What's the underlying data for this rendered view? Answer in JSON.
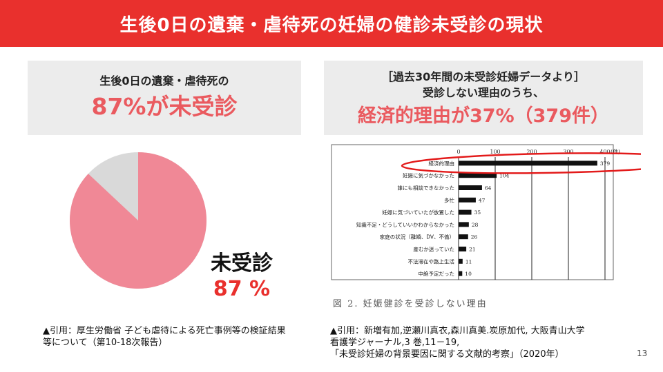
{
  "title": "生後0日の遺棄・虐待死の妊婦の健診未受診の現状",
  "left_box": {
    "line1": "生後0日の遺棄・虐待死の",
    "line2": "87%が未受診"
  },
  "right_box": {
    "line1": "［過去30年間の未受診妊婦データより］",
    "line2": "受診しない理由のうち、",
    "line3": "経済的理由が37%（379件）"
  },
  "pie": {
    "label": "未受診",
    "value_text": "87 %",
    "value": 87,
    "colors": {
      "main": "#f08896",
      "rest": "#d9d9d9"
    }
  },
  "chart_data": {
    "type": "bar",
    "orientation": "horizontal",
    "categories": [
      "経済的理由",
      "妊娠に気づかなかった",
      "誰にも相談できなかった",
      "多忙",
      "妊娠に気づいていたが放置した",
      "知識不足・どうしていいかわからなかった",
      "家庭の状況（離婚、DV、不倫）",
      "産むか迷っていた",
      "不法滞在や路上生活",
      "中絶予定だった"
    ],
    "values": [
      379,
      104,
      64,
      47,
      35,
      28,
      26,
      21,
      11,
      10
    ],
    "value_labels": [
      "379",
      "104",
      "64",
      "47",
      "35",
      "28",
      "26",
      "21",
      "11",
      "10"
    ],
    "x_ticks": [
      "0",
      "100",
      "200",
      "300",
      "400"
    ],
    "x_unit": "(件)",
    "xlim": [
      0,
      400
    ],
    "grid": true,
    "caption": "図 2.  妊娠健診を受診しない理由",
    "highlight_color": "#e31b1b"
  },
  "citations": {
    "left": "▲引用：厚生労働省 子ども虐待による死亡事例等の検証結果等について（第10-18次報告）",
    "right_l1": "▲引用：新増有加,逆瀬川真衣,森川真美.炭原加代, 大阪青山大学",
    "right_l2": "看護学ジャーナル,3 巻,11－19,",
    "right_l3": "「未受診妊婦の背景要因に関する文献的考察」（2020年）"
  },
  "page_number": "13"
}
